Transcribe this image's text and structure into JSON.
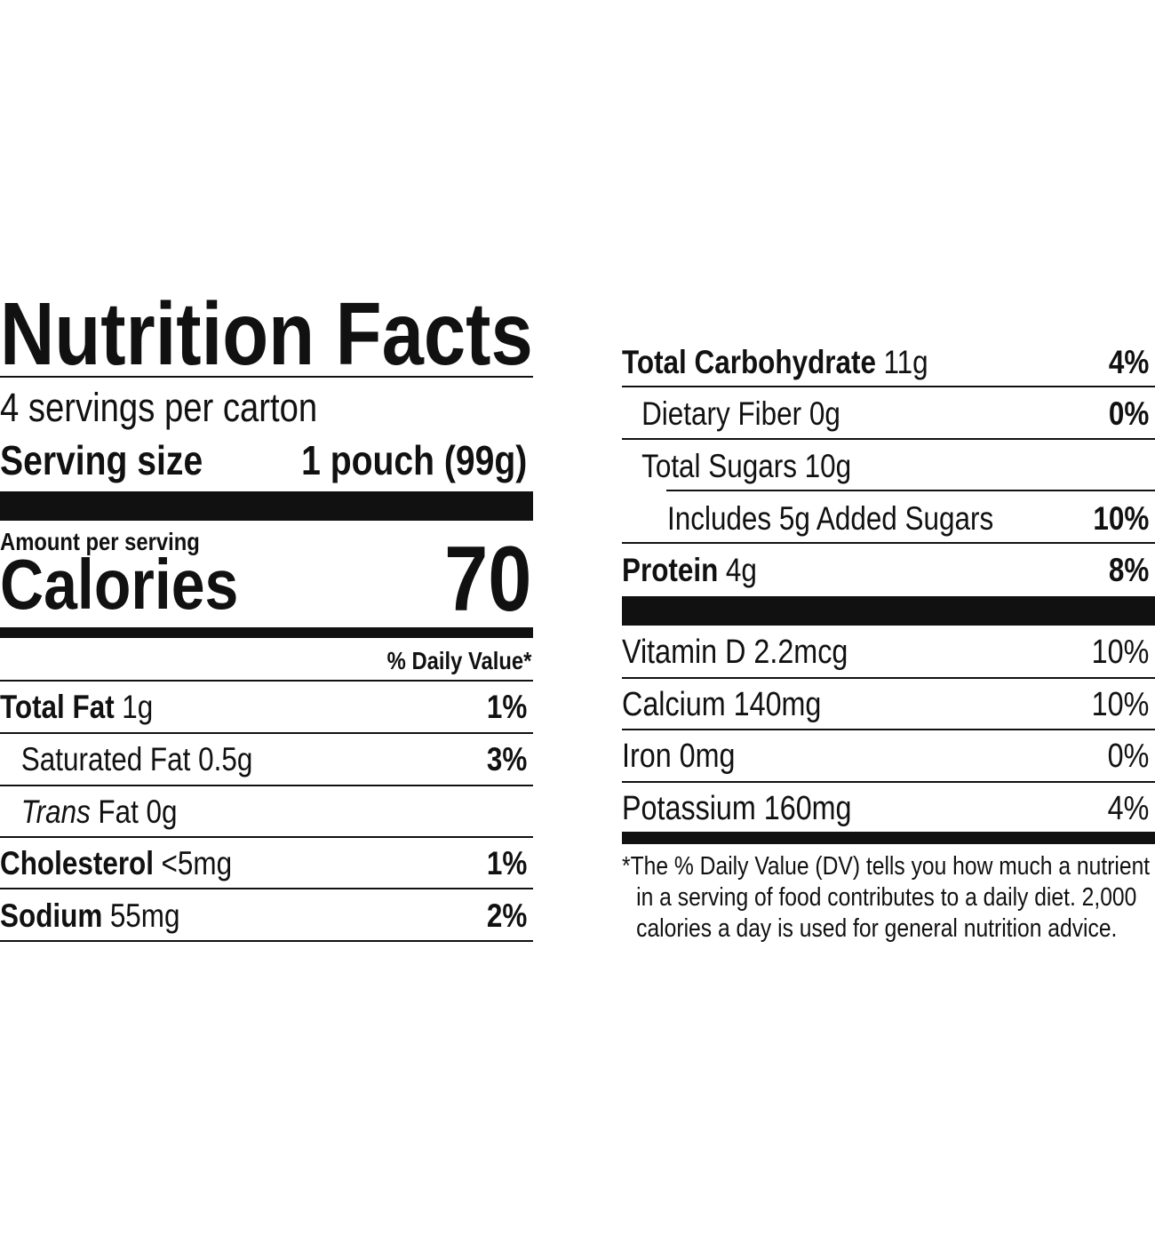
{
  "title": "Nutrition Facts",
  "servings": "4 servings per carton",
  "serving_size": {
    "label": "Serving size",
    "value": "1 pouch (99g)"
  },
  "amount_per_serving": "Amount per serving",
  "calories": {
    "label": "Calories",
    "value": "70"
  },
  "daily_value_header": "% Daily Value*",
  "nutrients": [
    {
      "name": "Total Fat",
      "amount": "1g",
      "dv": "1%"
    },
    {
      "name": "Saturated Fat 0.5g",
      "dv": "3%"
    },
    {
      "name": "Trans",
      "amount": "Fat 0g"
    },
    {
      "name": "Cholesterol",
      "amount": "<5mg",
      "dv": "1%"
    },
    {
      "name": "Sodium",
      "amount": "55mg",
      "dv": "2%"
    },
    {
      "name": "Total Carbohydrate",
      "amount": "11g",
      "dv": "4%"
    },
    {
      "name": "Dietary Fiber 0g",
      "dv": "0%"
    },
    {
      "name": "Total Sugars 10g"
    },
    {
      "name": "Includes 5g Added Sugars",
      "dv": "10%"
    },
    {
      "name": "Protein",
      "amount": "4g",
      "dv": "8%"
    }
  ],
  "vitamins": [
    {
      "name": "Vitamin D 2.2mcg",
      "dv": "10%"
    },
    {
      "name": "Calcium 140mg",
      "dv": "10%"
    },
    {
      "name": "Iron 0mg",
      "dv": "0%"
    },
    {
      "name": "Potassium 160mg",
      "dv": "4%"
    }
  ],
  "footnote": "*The % Daily Value (DV) tells you how much a nutrient in a serving of food contributes to a daily diet. 2,000 calories a day is used for general nutrition advice."
}
